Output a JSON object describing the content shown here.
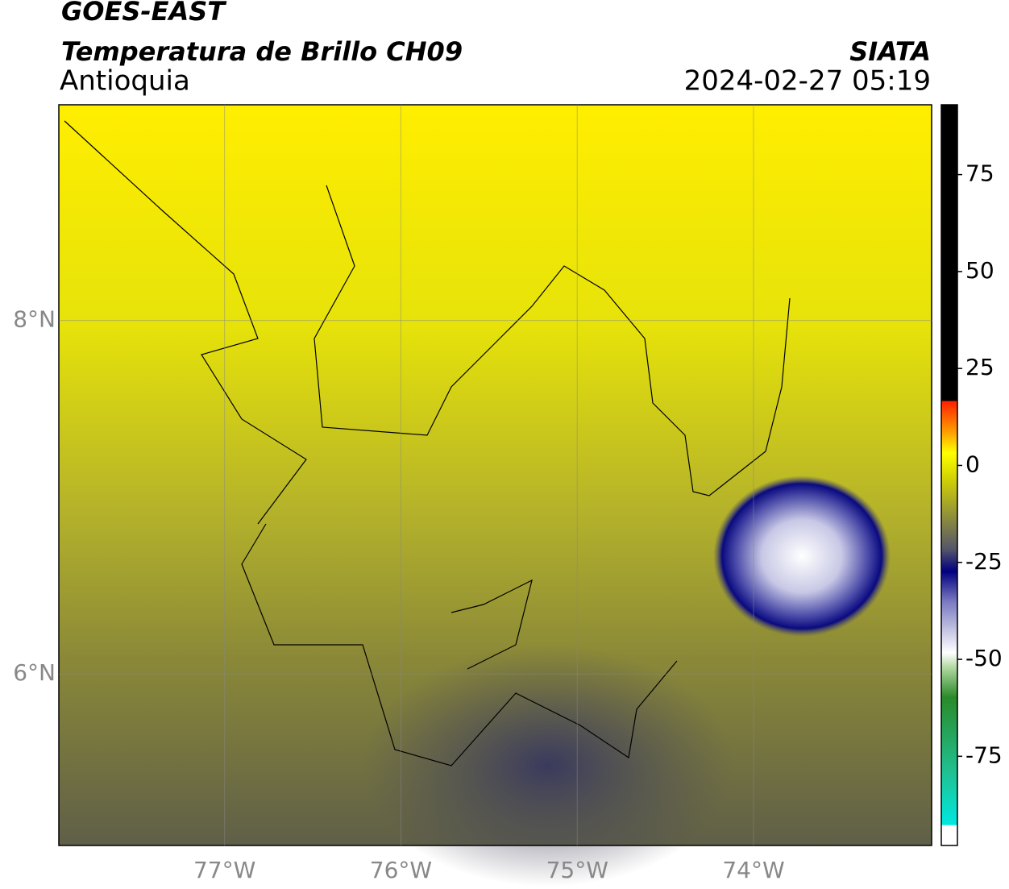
{
  "header": {
    "satellite": "GOES-EAST",
    "product": "Temperatura de Brillo CH09",
    "region": "Antioquia",
    "agency": "SIATA",
    "datetime": "2024-02-27 05:19"
  },
  "map": {
    "xlim": [
      -77.94,
      -72.99
    ],
    "ylim": [
      5.03,
      9.22
    ],
    "xticks": [
      {
        "value": -77,
        "label": "77°W"
      },
      {
        "value": -76,
        "label": "76°W"
      },
      {
        "value": -75,
        "label": "75°W"
      },
      {
        "value": -74,
        "label": "74°W"
      }
    ],
    "yticks": [
      {
        "value": 8,
        "label": "8°N"
      },
      {
        "value": 6,
        "label": "6°N"
      }
    ],
    "grid": true
  },
  "colorbar": {
    "lim": [
      -98,
      93
    ],
    "ticks": [
      75,
      50,
      25,
      0,
      -25,
      -50,
      -75
    ]
  }
}
